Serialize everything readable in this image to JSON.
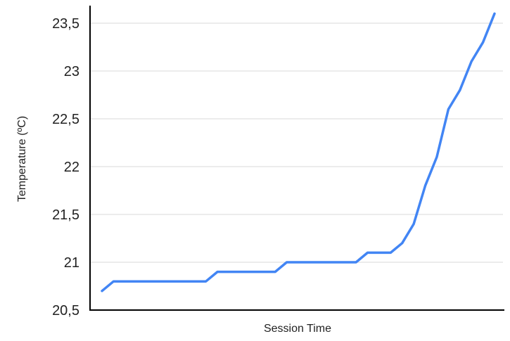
{
  "chart_data": {
    "type": "line",
    "xlabel": "Session Time",
    "ylabel": "Temperature (ºC)",
    "ylim": [
      20.5,
      23.7
    ],
    "yticks": [
      20.5,
      21,
      21.5,
      22,
      22.5,
      23,
      23.5
    ],
    "ytick_labels": [
      "20,5",
      "21",
      "21,5",
      "22",
      "22,5",
      "23",
      "23,5"
    ],
    "grid": true,
    "colors": {
      "line": "#4285f4"
    },
    "series": [
      {
        "values": [
          20.7,
          20.8,
          20.8,
          20.8,
          20.8,
          20.8,
          20.8,
          20.8,
          20.8,
          20.8,
          20.9,
          20.9,
          20.9,
          20.9,
          20.9,
          20.9,
          21.0,
          21.0,
          21.0,
          21.0,
          21.0,
          21.0,
          21.0,
          21.1,
          21.1,
          21.1,
          21.2,
          21.4,
          21.8,
          22.1,
          22.6,
          22.8,
          23.1,
          23.3,
          23.6
        ]
      }
    ]
  }
}
